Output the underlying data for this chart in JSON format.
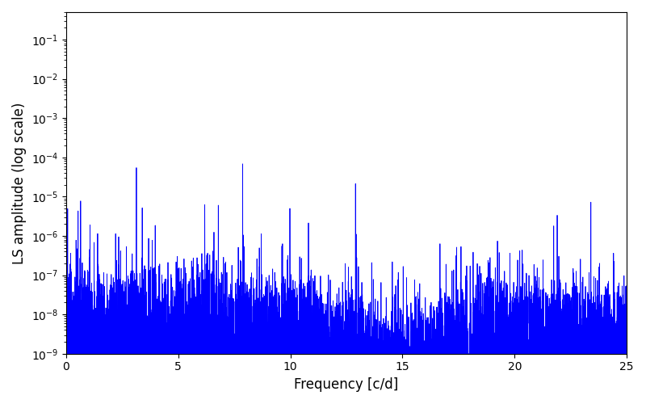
{
  "xlabel": "Frequency [c/d]",
  "ylabel": "LS amplitude (log scale)",
  "line_color": "#0000FF",
  "line_width": 0.6,
  "xlim": [
    0,
    25
  ],
  "ylim": [
    1e-09,
    0.5
  ],
  "yscale": "log",
  "freq_min": 0.0,
  "freq_max": 25.0,
  "n_points": 8000,
  "seed": 7,
  "figsize": [
    8.0,
    5.0
  ],
  "dpi": 100,
  "xticks": [
    0,
    5,
    10,
    15,
    20,
    25
  ]
}
